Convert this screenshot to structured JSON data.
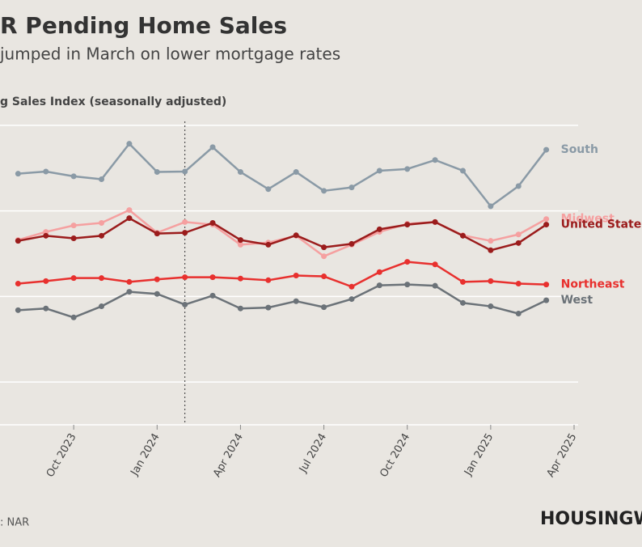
{
  "chart_data": {
    "type": "line",
    "title": "R Pending Home Sales",
    "subtitle": " jumped in March on lower mortgage rates",
    "y_axis_label": "g Sales Index (seasonally adjusted)",
    "source": ": NAR",
    "brand": "HOUSINGW",
    "x": [
      "2023-08",
      "2023-09",
      "2023-10",
      "2023-11",
      "2023-12",
      "2024-01",
      "2024-02",
      "2024-03",
      "2024-04",
      "2024-05",
      "2024-06",
      "2024-07",
      "2024-08",
      "2024-09",
      "2024-10",
      "2024-11",
      "2024-12",
      "2025-01",
      "2025-02",
      "2025-03"
    ],
    "xlim": [
      "2023-07",
      "2025-04"
    ],
    "xticks": [
      {
        "value": "2023-10",
        "label": "Oct 2023"
      },
      {
        "value": "2024-01",
        "label": "Jan 2024"
      },
      {
        "value": "2024-04",
        "label": "Apr 2024"
      },
      {
        "value": "2024-07",
        "label": "Jul 2024"
      },
      {
        "value": "2024-10",
        "label": "Oct 2024"
      },
      {
        "value": "2025-01",
        "label": "Jan 2025"
      },
      {
        "value": "2025-04",
        "label": "Apr 2025"
      }
    ],
    "ylim": [
      30,
      105
    ],
    "yticks": [
      40,
      60,
      80,
      100
    ],
    "grid": true,
    "vline": "2024-02",
    "series": [
      {
        "name": "South",
        "color": "#8a9aa6",
        "values": [
          88.7,
          89.2,
          88.1,
          87.4,
          95.7,
          89.1,
          89.2,
          94.9,
          89.1,
          85.1,
          89.1,
          84.7,
          85.5,
          89.4,
          89.8,
          91.9,
          89.4,
          81.1,
          85.8,
          94.3
        ]
      },
      {
        "name": "Midwest",
        "color": "#f5a0a0",
        "values": [
          73.2,
          75.1,
          76.6,
          77.2,
          80.2,
          74.9,
          77.4,
          76.8,
          72.1,
          72.6,
          74.2,
          69.4,
          72.1,
          75.1,
          77.0,
          77.4,
          74.3,
          73.0,
          74.5,
          78.1
        ]
      },
      {
        "name": "United State",
        "color": "#9b1c1c",
        "values": [
          73.0,
          74.2,
          73.6,
          74.2,
          78.3,
          74.7,
          74.9,
          77.2,
          73.2,
          72.1,
          74.3,
          71.5,
          72.3,
          75.7,
          76.8,
          77.4,
          74.2,
          70.8,
          72.5,
          76.8
        ]
      },
      {
        "name": "Northeast",
        "color": "#e8302e",
        "values": [
          63.0,
          63.6,
          64.3,
          64.3,
          63.4,
          64.0,
          64.5,
          64.5,
          64.2,
          63.8,
          64.9,
          64.7,
          62.3,
          65.7,
          68.1,
          67.5,
          63.4,
          63.6,
          63.0,
          62.8
        ]
      },
      {
        "name": "West",
        "color": "#6b7278",
        "values": [
          56.8,
          57.2,
          55.1,
          57.7,
          61.1,
          60.6,
          58.1,
          60.2,
          57.2,
          57.4,
          58.9,
          57.5,
          59.4,
          62.6,
          62.8,
          62.5,
          58.5,
          57.7,
          56.0,
          59.1
        ]
      }
    ]
  }
}
